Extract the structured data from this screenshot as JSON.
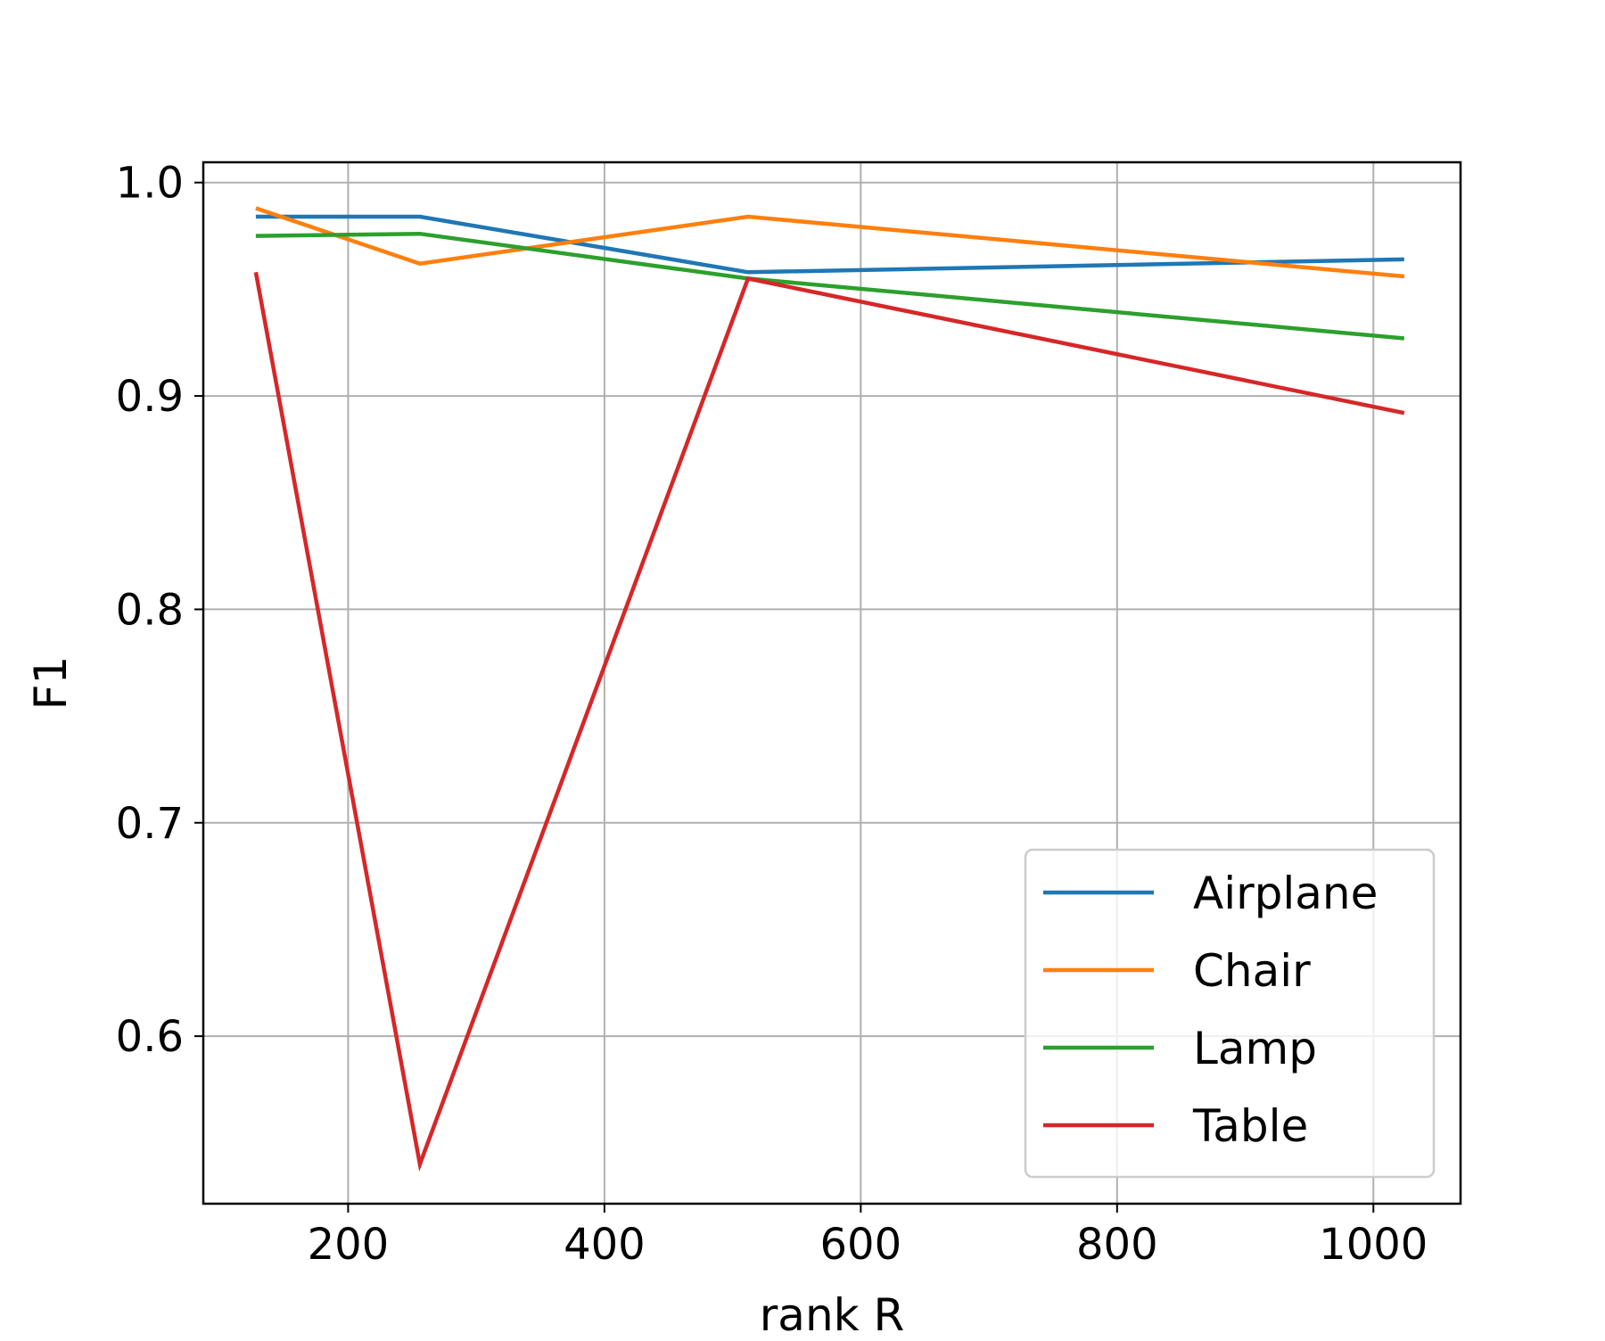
{
  "chart_data": {
    "type": "line",
    "xlabel": "rank R",
    "ylabel": "F1",
    "xlim": [
      87,
      1068
    ],
    "ylim": [
      0.5215,
      1.0095
    ],
    "x": [
      128,
      256,
      512,
      1024
    ],
    "xticks": [
      200,
      400,
      600,
      800,
      1000
    ],
    "xtick_labels": [
      "200",
      "400",
      "600",
      "800",
      "1000"
    ],
    "yticks": [
      0.6,
      0.7,
      0.8,
      0.9,
      1.0
    ],
    "ytick_labels": [
      "0.6",
      "0.7",
      "0.8",
      "0.9",
      "1.0"
    ],
    "grid": true,
    "legend_position": "lower-right",
    "series": [
      {
        "name": "Airplane",
        "color": "#1f77b4",
        "values": [
          0.984,
          0.984,
          0.958,
          0.964
        ]
      },
      {
        "name": "Chair",
        "color": "#ff7f0e",
        "values": [
          0.988,
          0.962,
          0.984,
          0.956
        ]
      },
      {
        "name": "Lamp",
        "color": "#2ca02c",
        "values": [
          0.975,
          0.976,
          0.955,
          0.927
        ]
      },
      {
        "name": "Table",
        "color": "#d62728",
        "values": [
          0.958,
          0.54,
          0.955,
          0.892
        ]
      }
    ]
  }
}
